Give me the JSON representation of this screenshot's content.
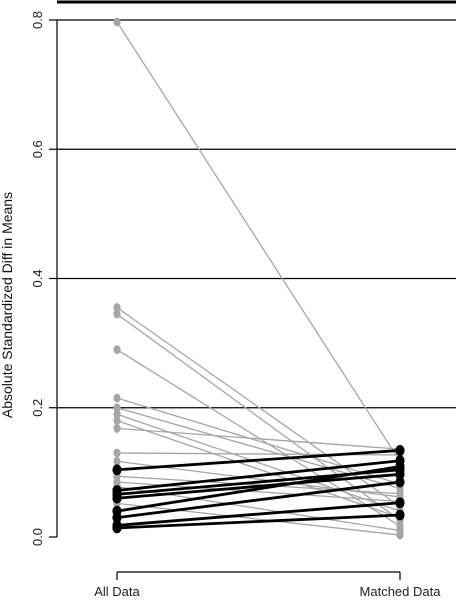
{
  "chart_data": {
    "type": "line",
    "title": "",
    "xlabel": "",
    "ylabel": "Absolute Standardized Diff in Means",
    "categories": [
      "All Data",
      "Matched Data"
    ],
    "ylim": [
      0,
      0.8
    ],
    "yticks": [
      0.0,
      0.2,
      0.4,
      0.6,
      0.8
    ],
    "ytick_labels": [
      "0.0",
      "0.2",
      "0.4",
      "0.6",
      "0.8"
    ],
    "grid": "horizontal",
    "legend": "none",
    "colors": {
      "improved": "#a6a6a6",
      "worsened": "#000000",
      "gridline": "#000000"
    },
    "series": [
      {
        "group": "improved",
        "values": [
          0.797,
          0.117
        ]
      },
      {
        "group": "improved",
        "values": [
          0.355,
          0.047
        ]
      },
      {
        "group": "improved",
        "values": [
          0.345,
          0.026
        ]
      },
      {
        "group": "improved",
        "values": [
          0.29,
          0.017
        ]
      },
      {
        "group": "improved",
        "values": [
          0.215,
          0.082
        ]
      },
      {
        "group": "improved",
        "values": [
          0.2,
          0.075
        ]
      },
      {
        "group": "improved",
        "values": [
          0.19,
          0.04
        ]
      },
      {
        "group": "improved",
        "values": [
          0.18,
          0.03
        ]
      },
      {
        "group": "improved",
        "values": [
          0.168,
          0.136
        ]
      },
      {
        "group": "improved",
        "values": [
          0.13,
          0.127
        ]
      },
      {
        "group": "improved",
        "values": [
          0.117,
          0.062
        ]
      },
      {
        "group": "improved",
        "values": [
          0.094,
          0.067
        ]
      },
      {
        "group": "improved",
        "values": [
          0.085,
          0.055
        ]
      },
      {
        "group": "improved",
        "values": [
          0.078,
          0.01
        ]
      },
      {
        "group": "improved",
        "values": [
          0.052,
          0.003
        ]
      },
      {
        "group": "worsened",
        "values": [
          0.104,
          0.134
        ]
      },
      {
        "group": "worsened",
        "values": [
          0.072,
          0.118
        ]
      },
      {
        "group": "worsened",
        "values": [
          0.066,
          0.104
        ]
      },
      {
        "group": "worsened",
        "values": [
          0.06,
          0.097
        ]
      },
      {
        "group": "worsened",
        "values": [
          0.04,
          0.109
        ]
      },
      {
        "group": "worsened",
        "values": [
          0.03,
          0.085
        ]
      },
      {
        "group": "worsened",
        "values": [
          0.018,
          0.053
        ]
      },
      {
        "group": "worsened",
        "values": [
          0.014,
          0.034
        ]
      }
    ]
  }
}
